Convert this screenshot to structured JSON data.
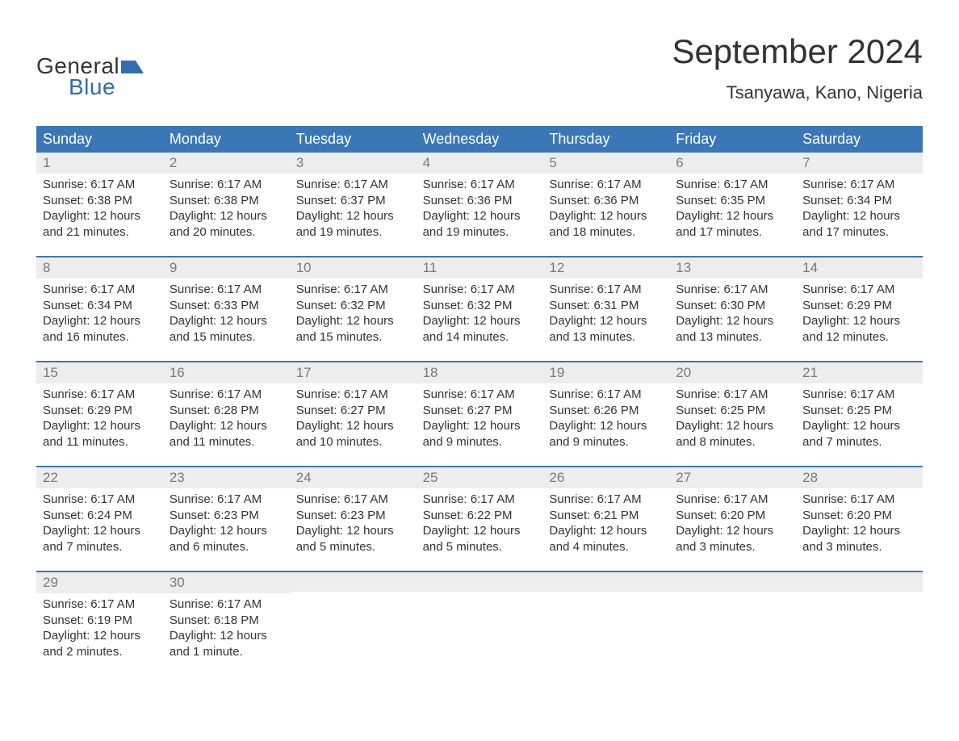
{
  "logo": {
    "line1": "General",
    "line2": "Blue",
    "text_color1": "#333333",
    "text_color2": "#2f6fb0",
    "icon_color": "#2f6fb0"
  },
  "header": {
    "month_title": "September 2024",
    "location": "Tsanyawa, Kano, Nigeria"
  },
  "colors": {
    "header_bg": "#3b77b7",
    "header_text": "#ffffff",
    "daynum_bg": "#ededed",
    "daynum_text": "#7a7a7a",
    "week_border": "#3b77b7",
    "body_text": "#333333",
    "page_bg": "#ffffff"
  },
  "typography": {
    "month_title_fontsize": 42,
    "location_fontsize": 22,
    "weekday_fontsize": 18,
    "daynum_fontsize": 17,
    "body_fontsize": 15,
    "font_family": "Arial"
  },
  "weekdays": [
    "Sunday",
    "Monday",
    "Tuesday",
    "Wednesday",
    "Thursday",
    "Friday",
    "Saturday"
  ],
  "weeks": [
    [
      {
        "num": "1",
        "sunrise": "Sunrise: 6:17 AM",
        "sunset": "Sunset: 6:38 PM",
        "daylight1": "Daylight: 12 hours",
        "daylight2": "and 21 minutes."
      },
      {
        "num": "2",
        "sunrise": "Sunrise: 6:17 AM",
        "sunset": "Sunset: 6:38 PM",
        "daylight1": "Daylight: 12 hours",
        "daylight2": "and 20 minutes."
      },
      {
        "num": "3",
        "sunrise": "Sunrise: 6:17 AM",
        "sunset": "Sunset: 6:37 PM",
        "daylight1": "Daylight: 12 hours",
        "daylight2": "and 19 minutes."
      },
      {
        "num": "4",
        "sunrise": "Sunrise: 6:17 AM",
        "sunset": "Sunset: 6:36 PM",
        "daylight1": "Daylight: 12 hours",
        "daylight2": "and 19 minutes."
      },
      {
        "num": "5",
        "sunrise": "Sunrise: 6:17 AM",
        "sunset": "Sunset: 6:36 PM",
        "daylight1": "Daylight: 12 hours",
        "daylight2": "and 18 minutes."
      },
      {
        "num": "6",
        "sunrise": "Sunrise: 6:17 AM",
        "sunset": "Sunset: 6:35 PM",
        "daylight1": "Daylight: 12 hours",
        "daylight2": "and 17 minutes."
      },
      {
        "num": "7",
        "sunrise": "Sunrise: 6:17 AM",
        "sunset": "Sunset: 6:34 PM",
        "daylight1": "Daylight: 12 hours",
        "daylight2": "and 17 minutes."
      }
    ],
    [
      {
        "num": "8",
        "sunrise": "Sunrise: 6:17 AM",
        "sunset": "Sunset: 6:34 PM",
        "daylight1": "Daylight: 12 hours",
        "daylight2": "and 16 minutes."
      },
      {
        "num": "9",
        "sunrise": "Sunrise: 6:17 AM",
        "sunset": "Sunset: 6:33 PM",
        "daylight1": "Daylight: 12 hours",
        "daylight2": "and 15 minutes."
      },
      {
        "num": "10",
        "sunrise": "Sunrise: 6:17 AM",
        "sunset": "Sunset: 6:32 PM",
        "daylight1": "Daylight: 12 hours",
        "daylight2": "and 15 minutes."
      },
      {
        "num": "11",
        "sunrise": "Sunrise: 6:17 AM",
        "sunset": "Sunset: 6:32 PM",
        "daylight1": "Daylight: 12 hours",
        "daylight2": "and 14 minutes."
      },
      {
        "num": "12",
        "sunrise": "Sunrise: 6:17 AM",
        "sunset": "Sunset: 6:31 PM",
        "daylight1": "Daylight: 12 hours",
        "daylight2": "and 13 minutes."
      },
      {
        "num": "13",
        "sunrise": "Sunrise: 6:17 AM",
        "sunset": "Sunset: 6:30 PM",
        "daylight1": "Daylight: 12 hours",
        "daylight2": "and 13 minutes."
      },
      {
        "num": "14",
        "sunrise": "Sunrise: 6:17 AM",
        "sunset": "Sunset: 6:29 PM",
        "daylight1": "Daylight: 12 hours",
        "daylight2": "and 12 minutes."
      }
    ],
    [
      {
        "num": "15",
        "sunrise": "Sunrise: 6:17 AM",
        "sunset": "Sunset: 6:29 PM",
        "daylight1": "Daylight: 12 hours",
        "daylight2": "and 11 minutes."
      },
      {
        "num": "16",
        "sunrise": "Sunrise: 6:17 AM",
        "sunset": "Sunset: 6:28 PM",
        "daylight1": "Daylight: 12 hours",
        "daylight2": "and 11 minutes."
      },
      {
        "num": "17",
        "sunrise": "Sunrise: 6:17 AM",
        "sunset": "Sunset: 6:27 PM",
        "daylight1": "Daylight: 12 hours",
        "daylight2": "and 10 minutes."
      },
      {
        "num": "18",
        "sunrise": "Sunrise: 6:17 AM",
        "sunset": "Sunset: 6:27 PM",
        "daylight1": "Daylight: 12 hours",
        "daylight2": "and 9 minutes."
      },
      {
        "num": "19",
        "sunrise": "Sunrise: 6:17 AM",
        "sunset": "Sunset: 6:26 PM",
        "daylight1": "Daylight: 12 hours",
        "daylight2": "and 9 minutes."
      },
      {
        "num": "20",
        "sunrise": "Sunrise: 6:17 AM",
        "sunset": "Sunset: 6:25 PM",
        "daylight1": "Daylight: 12 hours",
        "daylight2": "and 8 minutes."
      },
      {
        "num": "21",
        "sunrise": "Sunrise: 6:17 AM",
        "sunset": "Sunset: 6:25 PM",
        "daylight1": "Daylight: 12 hours",
        "daylight2": "and 7 minutes."
      }
    ],
    [
      {
        "num": "22",
        "sunrise": "Sunrise: 6:17 AM",
        "sunset": "Sunset: 6:24 PM",
        "daylight1": "Daylight: 12 hours",
        "daylight2": "and 7 minutes."
      },
      {
        "num": "23",
        "sunrise": "Sunrise: 6:17 AM",
        "sunset": "Sunset: 6:23 PM",
        "daylight1": "Daylight: 12 hours",
        "daylight2": "and 6 minutes."
      },
      {
        "num": "24",
        "sunrise": "Sunrise: 6:17 AM",
        "sunset": "Sunset: 6:23 PM",
        "daylight1": "Daylight: 12 hours",
        "daylight2": "and 5 minutes."
      },
      {
        "num": "25",
        "sunrise": "Sunrise: 6:17 AM",
        "sunset": "Sunset: 6:22 PM",
        "daylight1": "Daylight: 12 hours",
        "daylight2": "and 5 minutes."
      },
      {
        "num": "26",
        "sunrise": "Sunrise: 6:17 AM",
        "sunset": "Sunset: 6:21 PM",
        "daylight1": "Daylight: 12 hours",
        "daylight2": "and 4 minutes."
      },
      {
        "num": "27",
        "sunrise": "Sunrise: 6:17 AM",
        "sunset": "Sunset: 6:20 PM",
        "daylight1": "Daylight: 12 hours",
        "daylight2": "and 3 minutes."
      },
      {
        "num": "28",
        "sunrise": "Sunrise: 6:17 AM",
        "sunset": "Sunset: 6:20 PM",
        "daylight1": "Daylight: 12 hours",
        "daylight2": "and 3 minutes."
      }
    ],
    [
      {
        "num": "29",
        "sunrise": "Sunrise: 6:17 AM",
        "sunset": "Sunset: 6:19 PM",
        "daylight1": "Daylight: 12 hours",
        "daylight2": "and 2 minutes."
      },
      {
        "num": "30",
        "sunrise": "Sunrise: 6:17 AM",
        "sunset": "Sunset: 6:18 PM",
        "daylight1": "Daylight: 12 hours",
        "daylight2": "and 1 minute."
      },
      {
        "empty": true
      },
      {
        "empty": true
      },
      {
        "empty": true
      },
      {
        "empty": true
      },
      {
        "empty": true
      }
    ]
  ]
}
